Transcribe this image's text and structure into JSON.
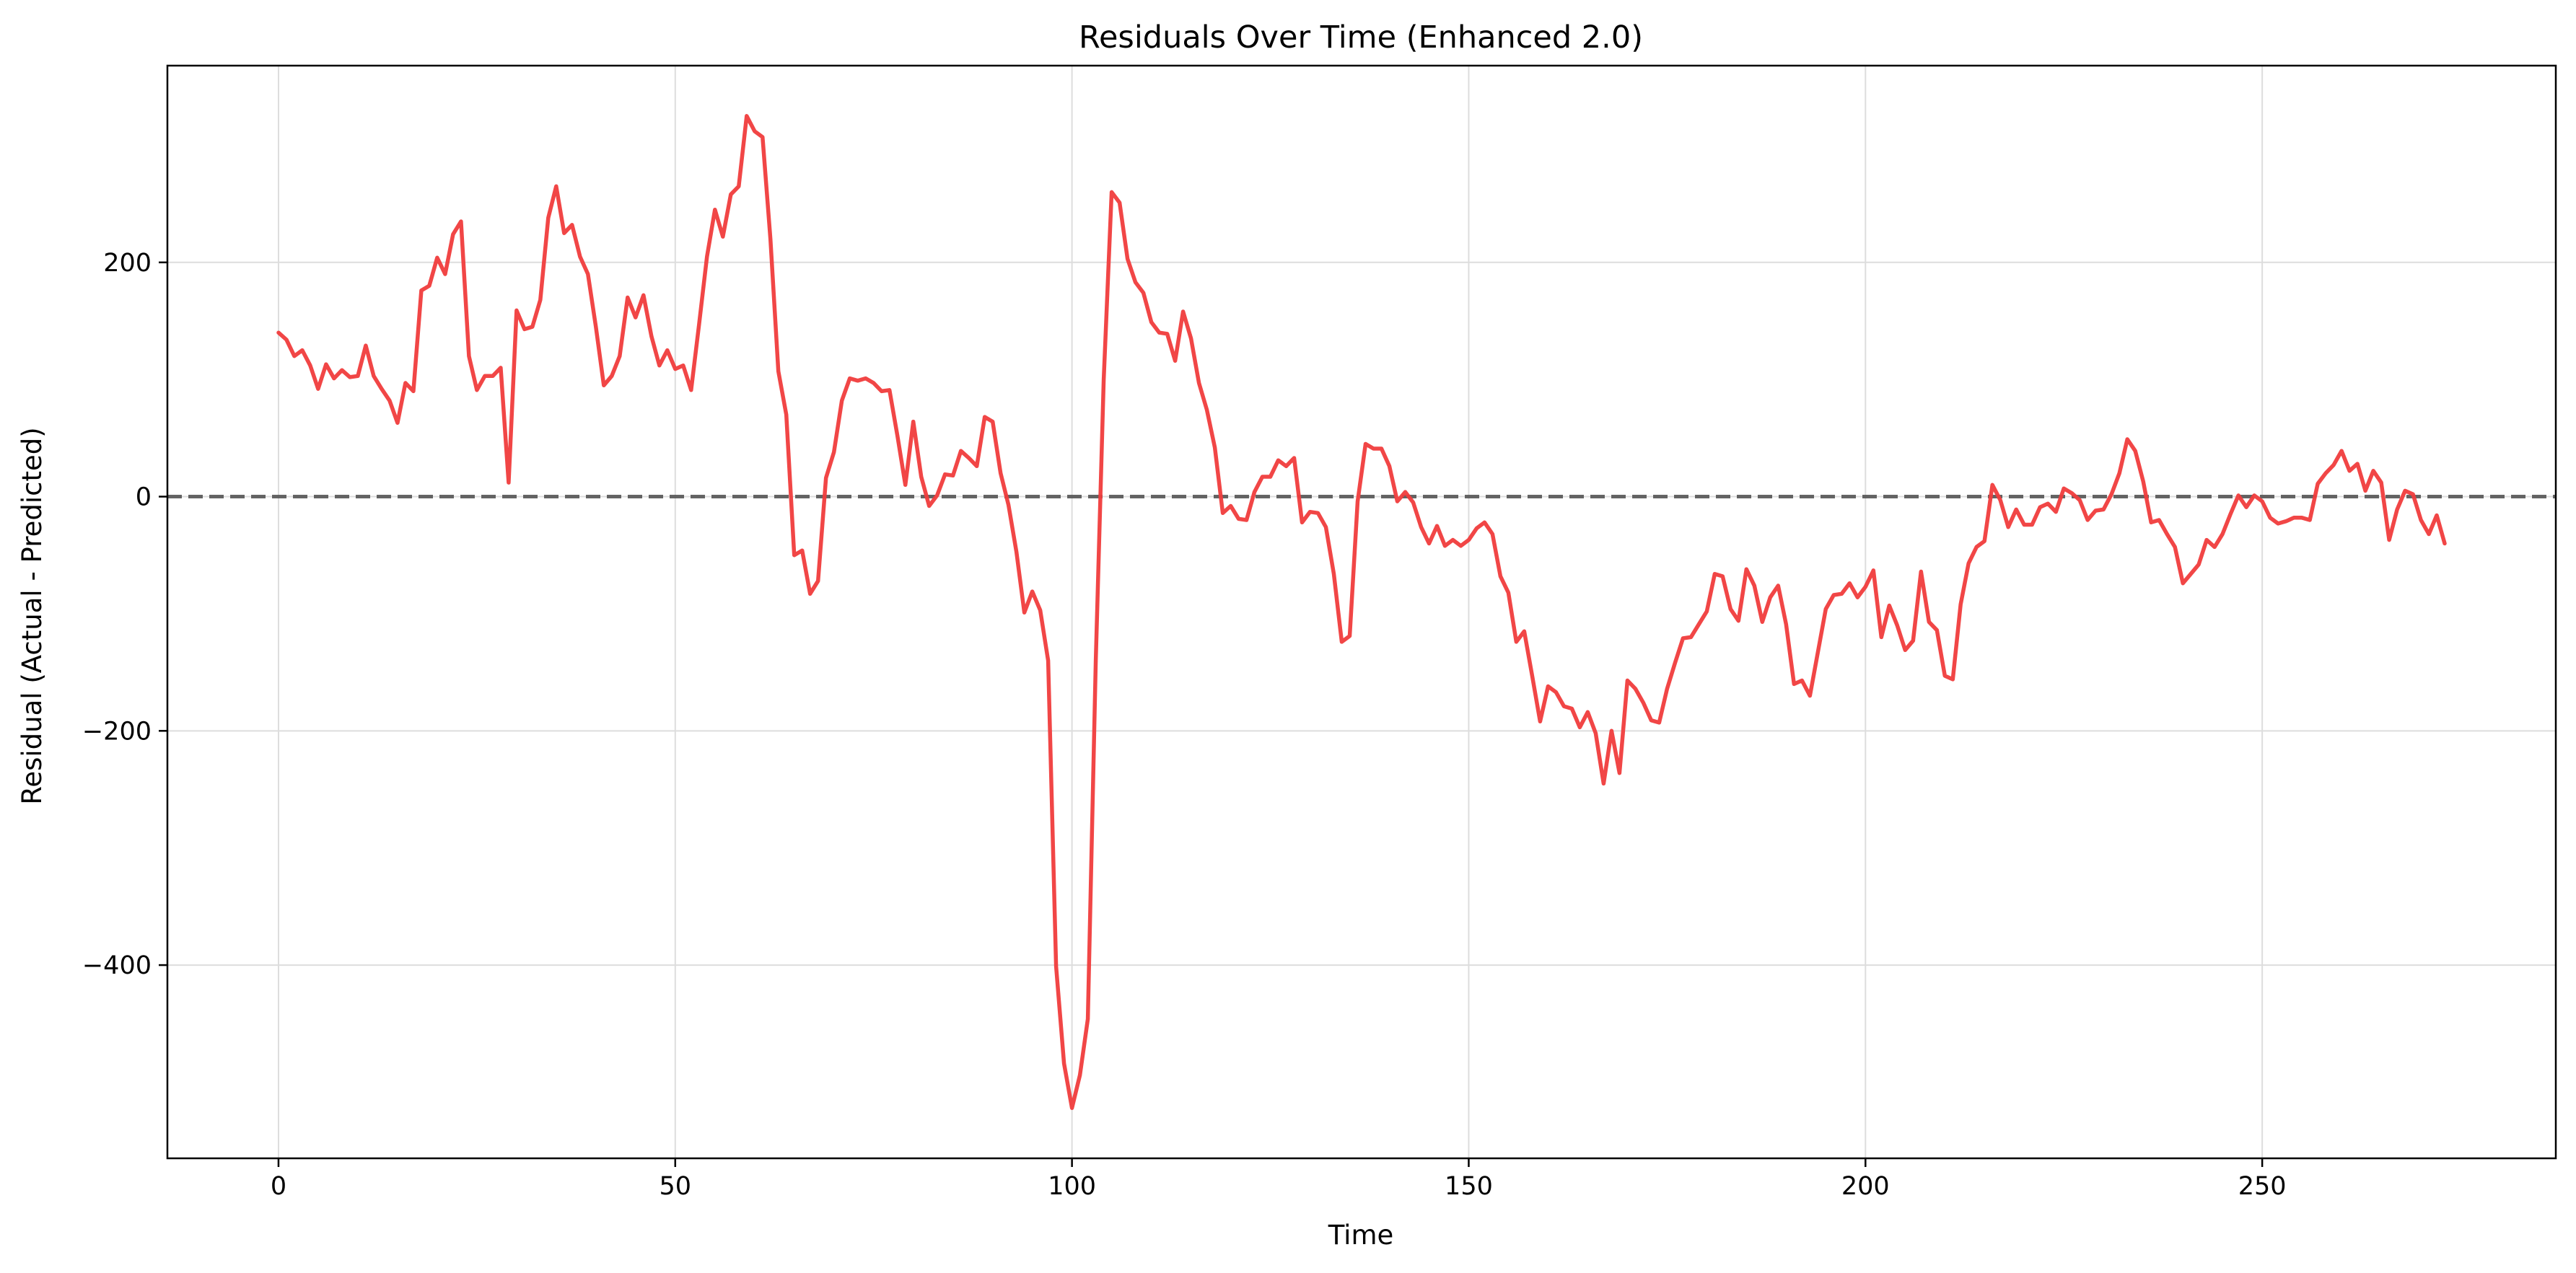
{
  "chart_data": {
    "type": "line",
    "title": "Residuals Over Time  (Enhanced 2.0)",
    "xlabel": "Time",
    "ylabel": "Residual (Actual - Predicted)",
    "xlim": [
      -14,
      287
    ],
    "ylim": [
      -565,
      368
    ],
    "xticks": [
      0,
      50,
      100,
      150,
      200,
      250
    ],
    "yticks": [
      -400,
      -200,
      0,
      200
    ],
    "xtick_labels": [
      "0",
      "50",
      "100",
      "150",
      "200",
      "250"
    ],
    "ytick_labels": [
      "−400",
      "−200",
      "0",
      "200"
    ],
    "grid": true,
    "reference_line": {
      "y": 0,
      "style": "dashed",
      "color": "#555555"
    },
    "series": [
      {
        "color": "#f03c3c",
        "x": [
          0,
          1,
          2,
          3,
          4,
          5,
          6,
          7,
          8,
          9,
          10,
          11,
          12,
          13,
          14,
          15,
          16,
          17,
          18,
          19,
          20,
          21,
          22,
          23,
          24,
          25,
          26,
          27,
          28,
          29,
          30,
          31,
          32,
          33,
          34,
          35,
          36,
          37,
          38,
          39,
          40,
          41,
          42,
          43,
          44,
          45,
          46,
          47,
          48,
          49,
          50,
          51,
          52,
          53,
          54,
          55,
          56,
          57,
          58,
          59,
          60,
          61,
          62,
          63,
          64,
          65,
          66,
          67,
          68,
          69,
          70,
          71,
          72,
          73,
          74,
          75,
          76,
          77,
          78,
          79,
          80,
          81,
          82,
          83,
          84,
          85,
          86,
          87,
          88,
          89,
          90,
          91,
          92,
          93,
          94,
          95,
          96,
          97,
          98,
          99,
          100,
          101,
          102,
          103,
          104,
          105,
          106,
          107,
          108,
          109,
          110,
          111,
          112,
          113,
          114,
          115,
          116,
          117,
          118,
          119,
          120,
          121,
          122,
          123,
          124,
          125,
          126,
          127,
          128,
          129,
          130,
          131,
          132,
          133,
          134,
          135,
          136,
          137,
          138,
          139,
          140,
          141,
          142,
          143,
          144,
          145,
          146,
          147,
          148,
          149,
          150,
          151,
          152,
          153,
          154,
          155,
          156,
          157,
          158,
          159,
          160,
          161,
          162,
          163,
          164,
          165,
          166,
          167,
          168,
          169,
          170,
          171,
          172,
          173,
          174,
          175,
          176,
          177,
          178,
          179,
          180,
          181,
          182,
          183,
          184,
          185,
          186,
          187,
          188,
          189,
          190,
          191,
          192,
          193,
          194,
          195,
          196,
          197,
          198,
          199,
          200,
          201,
          202,
          203,
          204,
          205,
          206,
          207,
          208,
          209,
          210,
          211,
          212,
          213,
          214,
          215,
          216,
          217,
          218,
          219,
          220,
          221,
          222,
          223,
          224,
          225,
          226,
          227,
          228,
          229,
          230,
          231,
          232,
          233,
          234,
          235,
          236,
          237,
          238,
          239,
          240,
          241,
          242,
          243,
          244,
          245,
          246,
          247,
          248,
          249,
          250,
          251,
          252,
          253,
          254,
          255,
          256,
          257,
          258,
          259,
          260,
          261,
          262,
          263,
          264,
          265,
          266,
          267,
          268,
          269,
          270,
          271,
          272,
          273
        ],
        "y": [
          140,
          134,
          120,
          125,
          112,
          92,
          113,
          101,
          108,
          102,
          103,
          129,
          103,
          92,
          82,
          63,
          97,
          90,
          176,
          180,
          204,
          190,
          224,
          235,
          120,
          91,
          103,
          103,
          110,
          12,
          159,
          143,
          145,
          168,
          238,
          265,
          225,
          232,
          205,
          190,
          145,
          95,
          103,
          120,
          170,
          153,
          172,
          137,
          112,
          125,
          109,
          112,
          91,
          147,
          205,
          245,
          222,
          258,
          265,
          325,
          312,
          307,
          220,
          107,
          70,
          -50,
          -46,
          -83,
          -72,
          16,
          38,
          82,
          101,
          99,
          101,
          97,
          90,
          91,
          52,
          10,
          64,
          17,
          -8,
          1,
          19,
          18,
          39,
          33,
          26,
          68,
          64,
          20,
          -7,
          -47,
          -99,
          -81,
          -97,
          -140,
          -401,
          -484,
          -522,
          -494,
          -446,
          -140,
          100,
          260,
          251,
          203,
          183,
          174,
          149,
          140,
          139,
          116,
          158,
          135,
          97,
          74,
          42,
          -14,
          -8,
          -19,
          -20,
          4,
          17,
          17,
          31,
          26,
          33,
          -22,
          -13,
          -14,
          -26,
          -66,
          -124,
          -119,
          -4,
          45,
          41,
          41,
          26,
          -4,
          4,
          -5,
          -26,
          -40,
          -25,
          -42,
          -37,
          -42,
          -37,
          -27,
          -22,
          -32,
          -68,
          -82,
          -124,
          -115,
          -153,
          -192,
          -162,
          -167,
          -179,
          -181,
          -197,
          -184,
          -202,
          -245,
          -200,
          -236,
          -157,
          -164,
          -176,
          -191,
          -193,
          -164,
          -142,
          -121,
          -120,
          -109,
          -98,
          -66,
          -68,
          -96,
          -106,
          -62,
          -76,
          -107,
          -86,
          -76,
          -109,
          -160,
          -157,
          -170,
          -133,
          -96,
          -84,
          -83,
          -74,
          -86,
          -77,
          -63,
          -120,
          -93,
          -110,
          -131,
          -123,
          -64,
          -107,
          -114,
          -153,
          -156,
          -92,
          -57,
          -43,
          -38,
          10,
          -3,
          -26,
          -11,
          -24,
          -24,
          -9,
          -6,
          -13,
          7,
          3,
          -3,
          -20,
          -12,
          -11,
          2,
          20,
          49,
          39,
          13,
          -22,
          -20,
          -32,
          -43,
          -74,
          -66,
          -58,
          -37,
          -43,
          -32,
          -15,
          1,
          -9,
          1,
          -4,
          -18,
          -23,
          -21,
          -18,
          -18,
          -20,
          11,
          20,
          27,
          39,
          22,
          28,
          5,
          22,
          12,
          -37,
          -11,
          5,
          2,
          -20,
          -32,
          -16,
          -40
        ]
      }
    ]
  }
}
